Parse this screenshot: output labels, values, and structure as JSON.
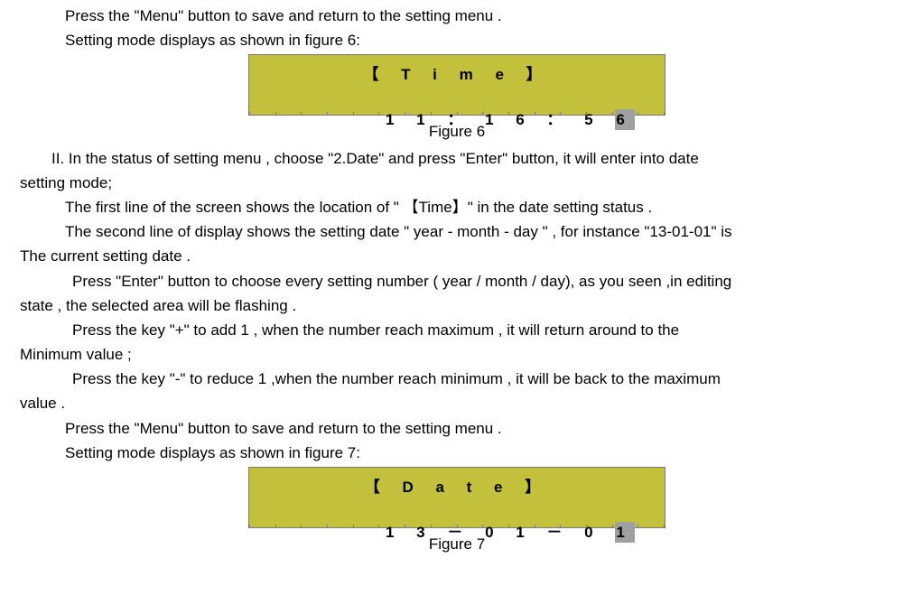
{
  "para1": "Press the \"Menu\" button to save and return to the setting menu .",
  "para2": "Setting mode displays as shown in figure 6:",
  "lcd1": {
    "title_chars": "【 T i m e 】",
    "value_prefix": "1 1 ： 1 6 ： 5 ",
    "value_cursor": "6",
    "bg_color": "#c3c03b",
    "cursor_bg": "#a0a0a0",
    "border_color": "#7a7a7a"
  },
  "fig6_caption": "Figure 6",
  "para3": "II. In the status of setting menu , choose \"2.Date\" and press \"Enter\" button, it will enter into date",
  "para3b": "setting mode;",
  "para4": "The first line of the screen shows the location of \" 【Time】\" in the date setting status .",
  "para5": "The second line of display shows the setting date \" year - month - day \" , for instance \"13-01-01\" is",
  "para5b": "The current setting date .",
  "para6": "Press \"Enter\" button to choose every setting number ( year / month / day), as you seen ,in editing",
  "para6b": "state , the selected area will be flashing .",
  "para7": "Press the key   \"+\" to add 1 , when the number reach maximum , it will return around to the",
  "para7b": "Minimum value ;",
  "para8": "Press the key \"-\" to reduce 1 ,when the number reach minimum , it will be back to the maximum",
  "para8b": "value .",
  "para9": "Press the \"Menu\" button to save and return to the setting menu .",
  "para10": "Setting mode displays as shown in figure 7:",
  "lcd2": {
    "title_chars": "【 D a t e 】",
    "value_prefix": "1 3 － 0 1 － 0 ",
    "value_cursor": "1",
    "bg_color": "#c3c03b",
    "cursor_bg": "#a0a0a0",
    "border_color": "#7a7a7a"
  },
  "fig7_caption": "Figure 7"
}
